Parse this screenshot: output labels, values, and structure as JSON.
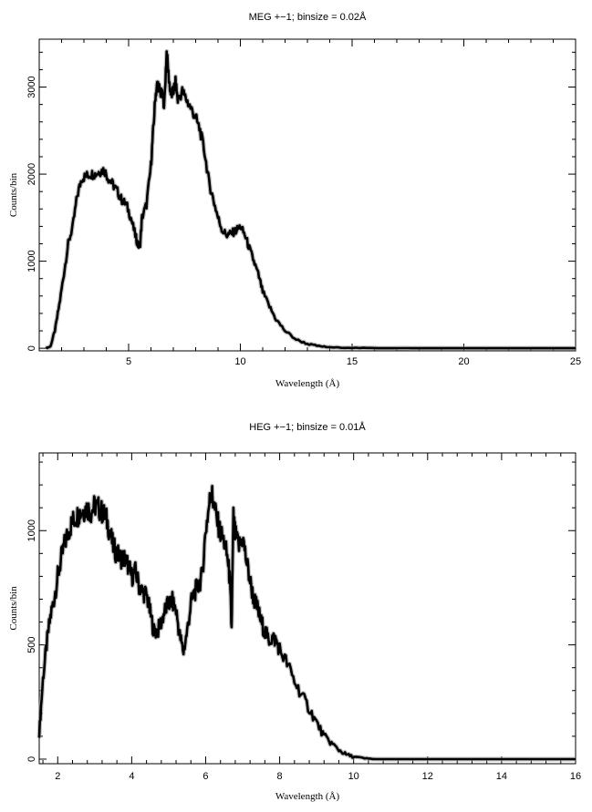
{
  "chart_data": [
    {
      "type": "line",
      "title": "MEG +−1; binsize = 0.02Å",
      "xlabel": "Wavelength (Å)",
      "ylabel": "Counts/bin",
      "xlim": [
        1.0,
        25.0
      ],
      "ylim": [
        -30,
        3550
      ],
      "xticks": [
        5,
        10,
        15,
        20,
        25
      ],
      "yticks": [
        0,
        1000,
        2000,
        3000
      ],
      "grid": false,
      "series": [
        {
          "x": [
            1.3,
            1.5,
            1.7,
            1.9,
            2.1,
            2.3,
            2.5,
            2.7,
            2.9,
            3.1,
            3.3,
            3.5,
            3.7,
            3.9,
            4.1,
            4.3,
            4.5,
            4.7,
            4.9,
            5.1,
            5.3,
            5.4,
            5.5,
            5.6,
            5.8,
            6.0,
            6.1,
            6.2,
            6.3,
            6.4,
            6.5,
            6.6,
            6.7,
            6.8,
            6.9,
            7.0,
            7.1,
            7.2,
            7.4,
            7.6,
            7.8,
            8.0,
            8.2,
            8.4,
            8.6,
            8.8,
            9.0,
            9.2,
            9.4,
            9.6,
            9.8,
            10.0,
            10.2,
            10.4,
            10.6,
            10.8,
            11.0,
            11.3,
            11.6,
            12.0,
            12.5,
            13.0,
            13.5,
            14.0,
            15.0,
            16.0,
            17.0,
            18.0,
            20.0,
            22.0,
            25.0
          ],
          "values": [
            0,
            20,
            200,
            500,
            850,
            1200,
            1400,
            1750,
            1950,
            1980,
            2000,
            2000,
            2030,
            2050,
            1950,
            1880,
            1800,
            1700,
            1650,
            1500,
            1300,
            1200,
            1150,
            1500,
            1650,
            2100,
            2500,
            2900,
            3050,
            2950,
            2900,
            2800,
            3400,
            3100,
            2900,
            2950,
            3050,
            2850,
            2950,
            2850,
            2750,
            2650,
            2500,
            2250,
            1900,
            1700,
            1500,
            1350,
            1300,
            1320,
            1350,
            1400,
            1300,
            1150,
            1000,
            850,
            650,
            480,
            330,
            200,
            100,
            50,
            25,
            10,
            5,
            2,
            1,
            0,
            0,
            0,
            0
          ]
        }
      ]
    },
    {
      "type": "line",
      "title": "HEG +−1; binsize = 0.01Å",
      "xlabel": "Wavelength (Å)",
      "ylabel": "Counts/bin",
      "xlim": [
        1.5,
        16.0
      ],
      "ylim": [
        -20,
        1340
      ],
      "xticks": [
        2,
        4,
        6,
        8,
        10,
        12,
        14,
        16
      ],
      "yticks": [
        0,
        500,
        1000
      ],
      "grid": false,
      "series": [
        {
          "x": [
            1.5,
            1.6,
            1.7,
            1.8,
            1.9,
            2.0,
            2.1,
            2.2,
            2.3,
            2.4,
            2.5,
            2.6,
            2.7,
            2.8,
            2.9,
            3.0,
            3.1,
            3.2,
            3.3,
            3.4,
            3.5,
            3.6,
            3.7,
            3.8,
            3.9,
            4.0,
            4.1,
            4.2,
            4.3,
            4.4,
            4.5,
            4.6,
            4.7,
            4.8,
            4.9,
            5.0,
            5.1,
            5.2,
            5.3,
            5.4,
            5.5,
            5.6,
            5.7,
            5.8,
            5.9,
            6.0,
            6.1,
            6.15,
            6.2,
            6.3,
            6.4,
            6.5,
            6.6,
            6.65,
            6.7,
            6.75,
            6.8,
            6.9,
            7.0,
            7.1,
            7.2,
            7.3,
            7.4,
            7.5,
            7.6,
            7.7,
            7.8,
            7.9,
            8.0,
            8.2,
            8.4,
            8.6,
            8.8,
            9.0,
            9.2,
            9.4,
            9.6,
            9.8,
            10.0,
            10.3,
            10.6,
            11.0,
            12.0,
            13.0,
            14.0,
            15.0,
            16.0
          ],
          "values": [
            110,
            350,
            500,
            620,
            700,
            800,
            880,
            950,
            1000,
            1040,
            1060,
            1080,
            1090,
            1100,
            1080,
            1110,
            1100,
            1080,
            1060,
            1000,
            930,
            900,
            880,
            880,
            850,
            800,
            820,
            760,
            730,
            720,
            640,
            560,
            560,
            600,
            650,
            680,
            690,
            650,
            540,
            470,
            560,
            680,
            730,
            760,
            800,
            1000,
            1120,
            1180,
            1130,
            1050,
            990,
            950,
            870,
            790,
            570,
            1060,
            980,
            930,
            970,
            870,
            780,
            700,
            660,
            600,
            560,
            520,
            530,
            520,
            480,
            420,
            340,
            280,
            220,
            160,
            100,
            70,
            40,
            20,
            10,
            3,
            0,
            0,
            0,
            0,
            0,
            0,
            0
          ]
        }
      ]
    }
  ]
}
